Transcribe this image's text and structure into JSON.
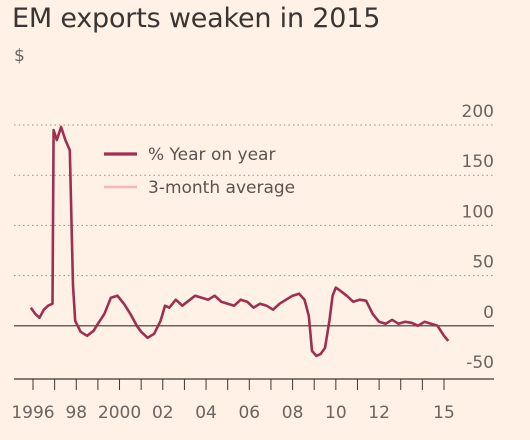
{
  "chart_data": {
    "type": "line",
    "title": "EM exports weaken in 2015",
    "ylabel": "$",
    "xlabel": "",
    "ylim": [
      -50,
      200
    ],
    "xlim": [
      1995.7,
      2015.3
    ],
    "y_ticks": [
      200,
      150,
      100,
      50,
      0,
      -50
    ],
    "x_ticks": [
      {
        "value": 1996,
        "label": "1996"
      },
      {
        "value": 1998,
        "label": "98"
      },
      {
        "value": 2000,
        "label": "2000"
      },
      {
        "value": 2002,
        "label": "02"
      },
      {
        "value": 2004,
        "label": "04"
      },
      {
        "value": 2006,
        "label": "06"
      },
      {
        "value": 2008,
        "label": "08"
      },
      {
        "value": 2010,
        "label": "10"
      },
      {
        "value": 2012,
        "label": "12"
      },
      {
        "value": 2015,
        "label": "15"
      }
    ],
    "x_minor_ticks": [
      1997,
      1999,
      2001,
      2003,
      2005,
      2007,
      2009,
      2011,
      2013,
      2014
    ],
    "grid": true,
    "legend_position": "top-left",
    "series": [
      {
        "name": "% Year on year",
        "color": "#9e2f50",
        "x": [
          1995.9,
          1996.1,
          1996.3,
          1996.5,
          1996.7,
          1996.9,
          1996.95,
          1997.1,
          1997.3,
          1997.5,
          1997.7,
          1997.85,
          1997.95,
          1998.2,
          1998.5,
          1998.8,
          1999.0,
          1999.3,
          1999.6,
          1999.9,
          2000.2,
          2000.5,
          2000.8,
          2001.0,
          2001.3,
          2001.6,
          2001.9,
          2002.1,
          2002.3,
          2002.6,
          2002.9,
          2003.2,
          2003.5,
          2003.8,
          2004.1,
          2004.4,
          2004.7,
          2005.0,
          2005.3,
          2005.6,
          2005.9,
          2006.2,
          2006.5,
          2006.8,
          2007.1,
          2007.4,
          2007.7,
          2008.0,
          2008.3,
          2008.55,
          2008.75,
          2008.9,
          2009.1,
          2009.3,
          2009.5,
          2009.7,
          2009.85,
          2010.0,
          2010.2,
          2010.5,
          2010.8,
          2011.1,
          2011.4,
          2011.7,
          2012.0,
          2012.3,
          2012.6,
          2012.9,
          2013.2,
          2013.5,
          2013.8,
          2014.1,
          2014.4,
          2014.7,
          2015.0,
          2015.2
        ],
        "values": [
          18,
          12,
          8,
          16,
          20,
          22,
          195,
          185,
          198,
          185,
          175,
          40,
          5,
          -6,
          -10,
          -5,
          2,
          12,
          28,
          30,
          22,
          12,
          0,
          -6,
          -12,
          -8,
          5,
          20,
          18,
          26,
          20,
          25,
          30,
          28,
          26,
          30,
          24,
          22,
          20,
          26,
          24,
          18,
          22,
          20,
          16,
          22,
          26,
          30,
          32,
          26,
          10,
          -25,
          -30,
          -28,
          -22,
          5,
          30,
          38,
          35,
          30,
          24,
          26,
          25,
          12,
          4,
          2,
          6,
          2,
          4,
          3,
          0,
          4,
          2,
          0,
          -10,
          -15
        ]
      },
      {
        "name": "3-month average",
        "color": "#f4b8bd",
        "x": [],
        "values": []
      }
    ]
  }
}
